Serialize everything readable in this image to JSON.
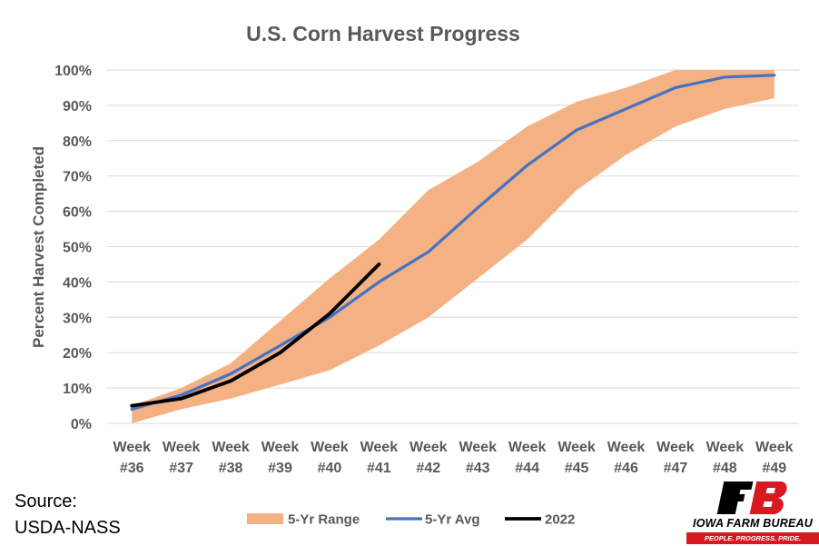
{
  "chart_data": {
    "type": "line",
    "title": "U.S. Corn Harvest Progress",
    "ylabel": "Percent Harvest Completed",
    "xlabel": "",
    "ylim": [
      0,
      100
    ],
    "y_ticks": [
      "0%",
      "10%",
      "20%",
      "30%",
      "40%",
      "50%",
      "60%",
      "70%",
      "80%",
      "90%",
      "100%"
    ],
    "categories": [
      [
        "Week",
        "#36"
      ],
      [
        "Week",
        "#37"
      ],
      [
        "Week",
        "#38"
      ],
      [
        "Week",
        "#39"
      ],
      [
        "Week",
        "#40"
      ],
      [
        "Week",
        "#41"
      ],
      [
        "Week",
        "#42"
      ],
      [
        "Week",
        "#43"
      ],
      [
        "Week",
        "#44"
      ],
      [
        "Week",
        "#45"
      ],
      [
        "Week",
        "#46"
      ],
      [
        "Week",
        "#47"
      ],
      [
        "Week",
        "#48"
      ],
      [
        "Week",
        "#49"
      ]
    ],
    "range": {
      "name": "5-Yr Range",
      "color": "#f4b183",
      "low": [
        0,
        4,
        7,
        11,
        15,
        22,
        30,
        41,
        52,
        66,
        76,
        84,
        89,
        92
      ],
      "high": [
        5,
        10,
        17,
        29,
        41,
        52,
        66,
        74,
        84,
        91,
        95,
        100,
        100,
        100
      ]
    },
    "series": [
      {
        "name": "5-Yr Avg",
        "color": "#4472c4",
        "values": [
          4,
          8,
          14,
          22,
          30,
          40,
          48.5,
          61,
          73,
          83,
          89,
          95,
          98,
          98.5
        ]
      },
      {
        "name": "2022",
        "color": "#000000",
        "values": [
          5,
          7,
          12,
          20,
          31,
          45,
          null,
          null,
          null,
          null,
          null,
          null,
          null,
          null
        ]
      }
    ],
    "grid": true,
    "legend_position": "bottom"
  },
  "source": {
    "line1": "Source:",
    "line2": "USDA-NASS"
  },
  "logo": {
    "name": "IOWA FARM BUREAU",
    "tagline": "PEOPLE. PROGRESS. PRIDE.",
    "brand_color": "#d71920"
  }
}
